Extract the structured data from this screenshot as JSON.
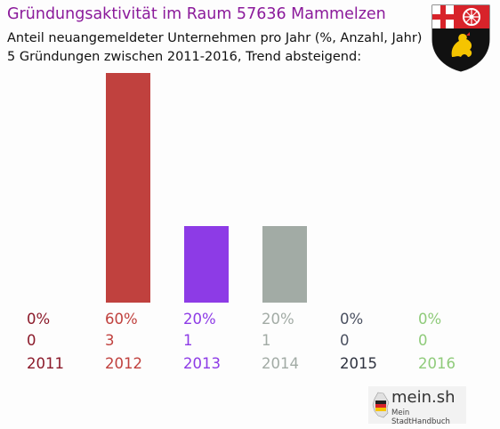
{
  "title": "Gründungsaktivität im Raum 57636 Mammelzen",
  "subtitle_line1": "Anteil neuangemeldeter Unternehmen pro Jahr (%, Anzahl, Jahr)",
  "subtitle_line2": "5 Gründungen zwischen 2011-2016, Trend absteigend:",
  "logo": {
    "main": "mein.sh",
    "sub": "Mein StadtHandbuch"
  },
  "chart_data": {
    "type": "bar",
    "categories": [
      "2011",
      "2012",
      "2013",
      "2014",
      "2015",
      "2016"
    ],
    "values": [
      0,
      60,
      20,
      20,
      0,
      0
    ],
    "counts": [
      0,
      3,
      1,
      1,
      0,
      0
    ],
    "percent_labels": [
      "0%",
      "60%",
      "20%",
      "20%",
      "0%",
      "0%"
    ],
    "count_labels": [
      "0",
      "3",
      "1",
      "1",
      "0",
      "0"
    ],
    "bar_colors": [
      "#8b1a2a",
      "#c0413e",
      "#8d3be6",
      "#a2aba5",
      "#4a5060",
      "#8fcb7a"
    ],
    "label_colors": [
      "#8b1a2a",
      "#c0413e",
      "#8d3be6",
      "#a2aba5",
      "#4a5060",
      "#8fcb7a"
    ],
    "year_colors": [
      "#8b1a2a",
      "#c0413e",
      "#8d3be6",
      "#a2aba5",
      "#2f3340",
      "#8fcb7a"
    ],
    "ylim": [
      0,
      60
    ]
  }
}
